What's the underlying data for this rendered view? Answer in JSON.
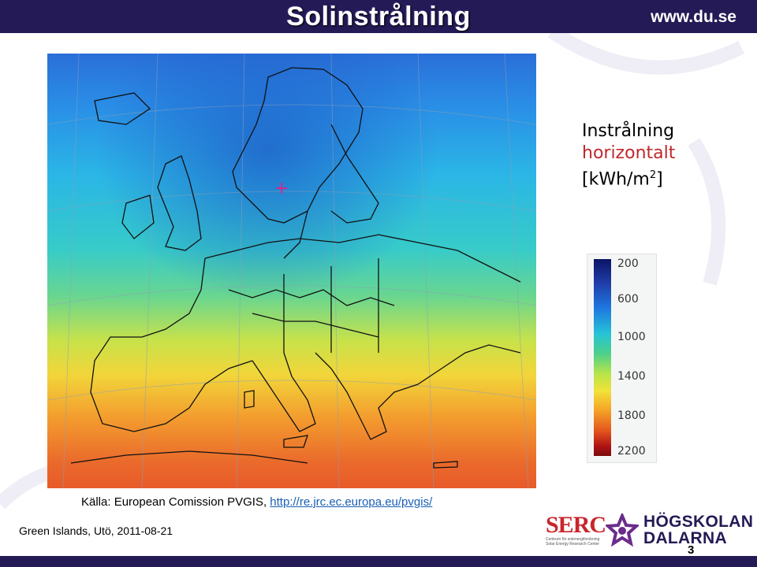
{
  "header": {
    "title": "Solinstrålning",
    "url": "www.du.se"
  },
  "caption": {
    "line1": "Instrålning",
    "line2": "horizontalt",
    "line3_prefix": "[kWh/m",
    "line3_sup": "2",
    "line3_suffix": "]"
  },
  "scale": {
    "ticks": [
      "200",
      "600",
      "1000",
      "1400",
      "1800",
      "2200"
    ]
  },
  "source": {
    "label": "Källa: European Comission PVGIS, ",
    "link": "http://re.jrc.ec.europa.eu/pvgis/"
  },
  "footer": {
    "event": "Green Islands, Utö,  2011-08-21",
    "slide_number": "3"
  },
  "logos": {
    "serc_name": "SERC",
    "serc_sub": "Centrum för solenergiforskning Solar Energy Research Center",
    "hd_line1": "HÖGSKOLAN",
    "hd_line2": "DALARNA"
  },
  "colors": {
    "brand": "#241a55",
    "accent": "#c0282d",
    "link": "#1a5fb4"
  }
}
